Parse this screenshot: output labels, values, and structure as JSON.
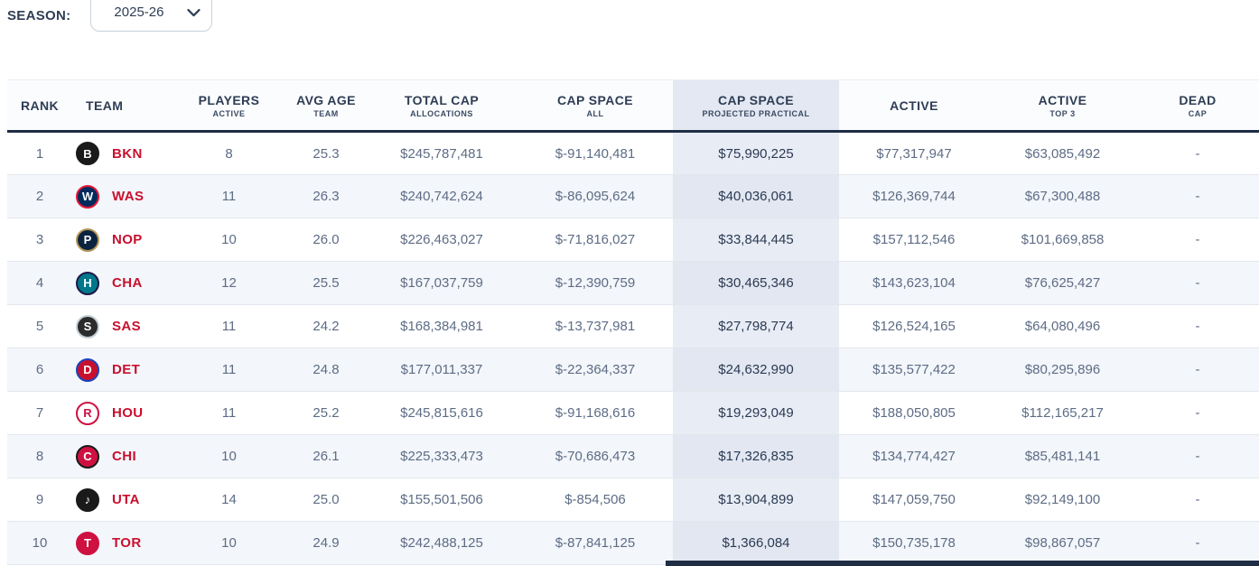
{
  "season_selector": {
    "label": "SEASON:",
    "value": "2025-26"
  },
  "colors": {
    "accent_red": "#C8102E",
    "header_text": "#2E3D54",
    "header_border": "#1F2D45",
    "row_alt_bg": "#F3F6FA",
    "highlight_col_bg": "#E8ECF5",
    "highlight_col_alt_bg": "#E2E7F1",
    "value_text": "#5D6C85",
    "highlight_value_text": "#2B3A52"
  },
  "table": {
    "columns": [
      {
        "label": "RANK",
        "sublabel": "",
        "highlighted": false
      },
      {
        "label": "TEAM",
        "sublabel": "",
        "highlighted": false
      },
      {
        "label": "PLAYERS",
        "sublabel": "ACTIVE",
        "highlighted": false
      },
      {
        "label": "AVG AGE",
        "sublabel": "TEAM",
        "highlighted": false
      },
      {
        "label": "TOTAL CAP",
        "sublabel": "ALLOCATIONS",
        "highlighted": false
      },
      {
        "label": "CAP SPACE",
        "sublabel": "ALL",
        "highlighted": false
      },
      {
        "label": "CAP SPACE",
        "sublabel": "PROJECTED PRACTICAL",
        "highlighted": true
      },
      {
        "label": "ACTIVE",
        "sublabel": "",
        "highlighted": false
      },
      {
        "label": "ACTIVE",
        "sublabel": "TOP 3",
        "highlighted": false
      },
      {
        "label": "DEAD",
        "sublabel": "CAP",
        "highlighted": false
      }
    ],
    "rows": [
      {
        "rank": "1",
        "team": "BKN",
        "logo": {
          "name": "brooklyn-nets-logo",
          "bg": "#1A1A1A",
          "ring": "#1A1A1A",
          "fg": "#FFFFFF",
          "glyph": "B"
        },
        "players": "8",
        "avg_age": "25.3",
        "total_cap": "$245,787,481",
        "cap_space_all": "$-91,140,481",
        "cap_space_projected": "$75,990,225",
        "active": "$77,317,947",
        "active_top3": "$63,085,492",
        "dead_cap": "-"
      },
      {
        "rank": "2",
        "team": "WAS",
        "logo": {
          "name": "washington-wizards-logo",
          "bg": "#002B5C",
          "ring": "#E31837",
          "fg": "#FFFFFF",
          "glyph": "W"
        },
        "players": "11",
        "avg_age": "26.3",
        "total_cap": "$240,742,624",
        "cap_space_all": "$-86,095,624",
        "cap_space_projected": "$40,036,061",
        "active": "$126,369,744",
        "active_top3": "$67,300,488",
        "dead_cap": "-"
      },
      {
        "rank": "3",
        "team": "NOP",
        "logo": {
          "name": "new-orleans-pelicans-logo",
          "bg": "#0C2340",
          "ring": "#B4975A",
          "fg": "#FFFFFF",
          "glyph": "P"
        },
        "players": "10",
        "avg_age": "26.0",
        "total_cap": "$226,463,027",
        "cap_space_all": "$-71,816,027",
        "cap_space_projected": "$33,844,445",
        "active": "$157,112,546",
        "active_top3": "$101,669,858",
        "dead_cap": "-"
      },
      {
        "rank": "4",
        "team": "CHA",
        "logo": {
          "name": "charlotte-hornets-logo",
          "bg": "#00788C",
          "ring": "#201747",
          "fg": "#FFFFFF",
          "glyph": "H"
        },
        "players": "12",
        "avg_age": "25.5",
        "total_cap": "$167,037,759",
        "cap_space_all": "$-12,390,759",
        "cap_space_projected": "$30,465,346",
        "active": "$143,623,104",
        "active_top3": "$76,625,427",
        "dead_cap": "-"
      },
      {
        "rank": "5",
        "team": "SAS",
        "logo": {
          "name": "san-antonio-spurs-logo",
          "bg": "#2B2B2B",
          "ring": "#C4CED4",
          "fg": "#FFFFFF",
          "glyph": "S"
        },
        "players": "11",
        "avg_age": "24.2",
        "total_cap": "$168,384,981",
        "cap_space_all": "$-13,737,981",
        "cap_space_projected": "$27,798,774",
        "active": "$126,524,165",
        "active_top3": "$64,080,496",
        "dead_cap": "-"
      },
      {
        "rank": "6",
        "team": "DET",
        "logo": {
          "name": "detroit-pistons-logo",
          "bg": "#C8102E",
          "ring": "#1D42BA",
          "fg": "#FFFFFF",
          "glyph": "D"
        },
        "players": "11",
        "avg_age": "24.8",
        "total_cap": "$177,011,337",
        "cap_space_all": "$-22,364,337",
        "cap_space_projected": "$24,632,990",
        "active": "$135,577,422",
        "active_top3": "$80,295,896",
        "dead_cap": "-"
      },
      {
        "rank": "7",
        "team": "HOU",
        "logo": {
          "name": "houston-rockets-logo",
          "bg": "#FFFFFF",
          "ring": "#CE1141",
          "fg": "#CE1141",
          "glyph": "R"
        },
        "players": "11",
        "avg_age": "25.2",
        "total_cap": "$245,815,616",
        "cap_space_all": "$-91,168,616",
        "cap_space_projected": "$19,293,049",
        "active": "$188,050,805",
        "active_top3": "$112,165,217",
        "dead_cap": "-"
      },
      {
        "rank": "8",
        "team": "CHI",
        "logo": {
          "name": "chicago-bulls-logo",
          "bg": "#CE1141",
          "ring": "#1A1A1A",
          "fg": "#FFFFFF",
          "glyph": "C"
        },
        "players": "10",
        "avg_age": "26.1",
        "total_cap": "$225,333,473",
        "cap_space_all": "$-70,686,473",
        "cap_space_projected": "$17,326,835",
        "active": "$134,774,427",
        "active_top3": "$85,481,141",
        "dead_cap": "-"
      },
      {
        "rank": "9",
        "team": "UTA",
        "logo": {
          "name": "utah-jazz-logo",
          "bg": "#1A1A1A",
          "ring": "#1A1A1A",
          "fg": "#FFFFFF",
          "glyph": "♪"
        },
        "players": "14",
        "avg_age": "25.0",
        "total_cap": "$155,501,506",
        "cap_space_all": "$-854,506",
        "cap_space_projected": "$13,904,899",
        "active": "$147,059,750",
        "active_top3": "$92,149,100",
        "dead_cap": "-"
      },
      {
        "rank": "10",
        "team": "TOR",
        "logo": {
          "name": "toronto-raptors-logo",
          "bg": "#CE1141",
          "ring": "#CE1141",
          "fg": "#FFFFFF",
          "glyph": "T"
        },
        "players": "10",
        "avg_age": "24.9",
        "total_cap": "$242,488,125",
        "cap_space_all": "$-87,841,125",
        "cap_space_projected": "$1,366,084",
        "active": "$150,735,178",
        "active_top3": "$98,867,057",
        "dead_cap": "-"
      }
    ]
  }
}
